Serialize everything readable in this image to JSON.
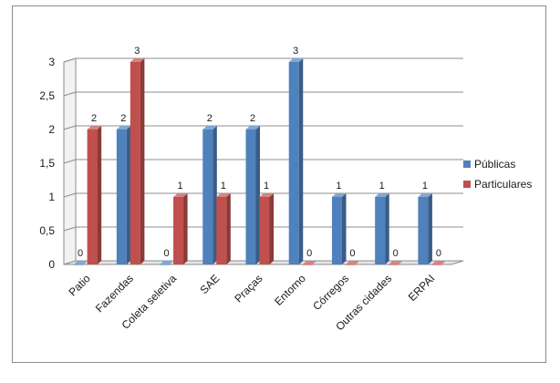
{
  "chart_data": {
    "type": "bar",
    "title": "",
    "xlabel": "",
    "ylabel": "",
    "ylim": [
      0,
      3
    ],
    "yticks": [
      "0",
      "0,5",
      "1",
      "1,5",
      "2",
      "2,5",
      "3"
    ],
    "categories": [
      "Patio",
      "Fazendas",
      "Coleta seletiva",
      "SAE",
      "Praças",
      "Entorno",
      "Córregos",
      "Outras cidades",
      "ERPAI"
    ],
    "series": [
      {
        "name": "Públicas",
        "color": "#4f81bd",
        "values": [
          0,
          2,
          0,
          2,
          2,
          3,
          1,
          1,
          1
        ]
      },
      {
        "name": "Particulares",
        "color": "#c0504d",
        "values": [
          2,
          3,
          1,
          1,
          1,
          0,
          0,
          0,
          0
        ]
      }
    ],
    "grid": true,
    "legend_position": "right",
    "data_labels": true
  }
}
